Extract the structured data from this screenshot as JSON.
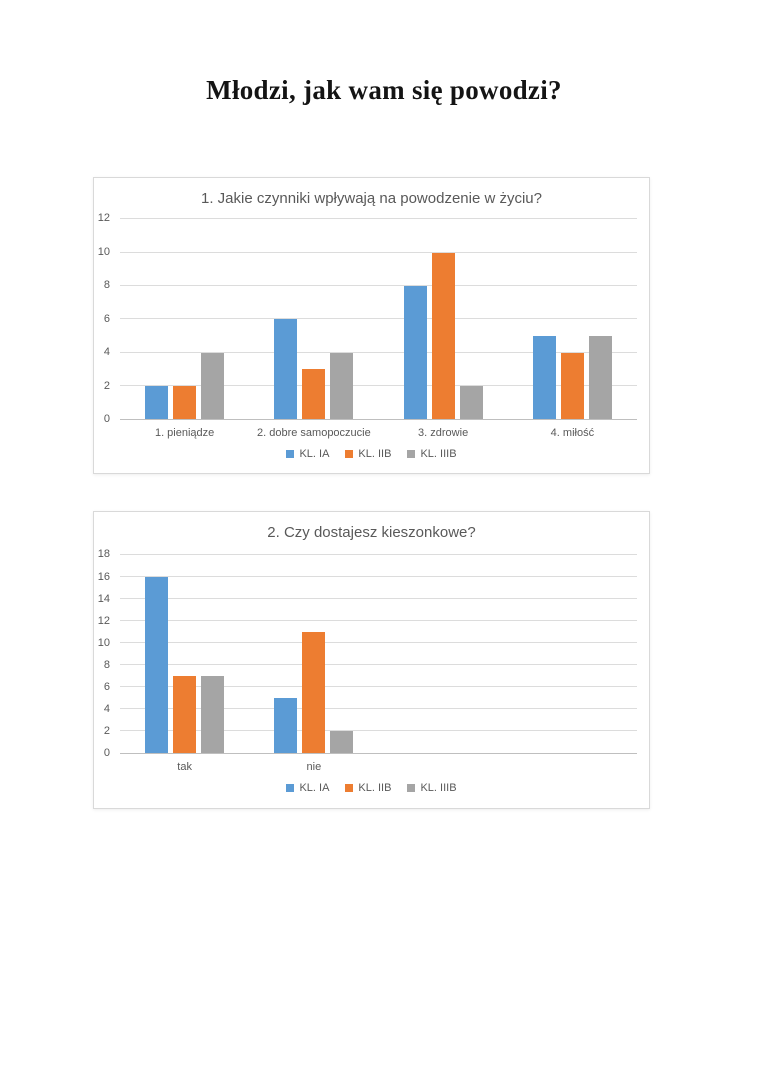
{
  "page": {
    "title": "Młodzi, jak wam się powodzi?"
  },
  "colors": {
    "series_blue": "#5B9BD5",
    "series_orange": "#ED7D31",
    "series_gray": "#A5A5A5",
    "gridline": "#DCDCDC",
    "axis_line": "#BFBFBF",
    "chart_border": "#D9D9D9",
    "chart_text": "#595959"
  },
  "chart_data": [
    {
      "type": "bar",
      "title": "1. Jakie czynniki wpływają na powodzenie w życiu?",
      "categories": [
        "1. pieniądze",
        "2. dobre samopoczucie",
        "3. zdrowie",
        "4. miłość"
      ],
      "series": [
        {
          "name": "KL. IA",
          "color": "#5B9BD5",
          "values": [
            2,
            6,
            8,
            5
          ]
        },
        {
          "name": "KL. IIB",
          "color": "#ED7D31",
          "values": [
            2,
            3,
            10,
            4
          ]
        },
        {
          "name": "KL. IIIB",
          "color": "#A5A5A5",
          "values": [
            4,
            4,
            2,
            5
          ]
        }
      ],
      "xlabel": "",
      "ylabel": "",
      "ylim": [
        0,
        12
      ],
      "y_ticks": [
        0,
        2,
        4,
        6,
        8,
        10,
        12
      ],
      "grid": true,
      "legend_position": "bottom",
      "slots": 4
    },
    {
      "type": "bar",
      "title": "2. Czy dostajesz kieszonkowe?",
      "categories": [
        "tak",
        "nie"
      ],
      "series": [
        {
          "name": "KL. IA",
          "color": "#5B9BD5",
          "values": [
            16,
            5
          ]
        },
        {
          "name": "KL. IIB",
          "color": "#ED7D31",
          "values": [
            7,
            11
          ]
        },
        {
          "name": "KL. IIIB",
          "color": "#A5A5A5",
          "values": [
            7,
            2
          ]
        }
      ],
      "xlabel": "",
      "ylabel": "",
      "ylim": [
        0,
        18
      ],
      "y_ticks": [
        0,
        2,
        4,
        6,
        8,
        10,
        12,
        14,
        16,
        18
      ],
      "grid": true,
      "legend_position": "bottom",
      "slots": 4
    }
  ]
}
